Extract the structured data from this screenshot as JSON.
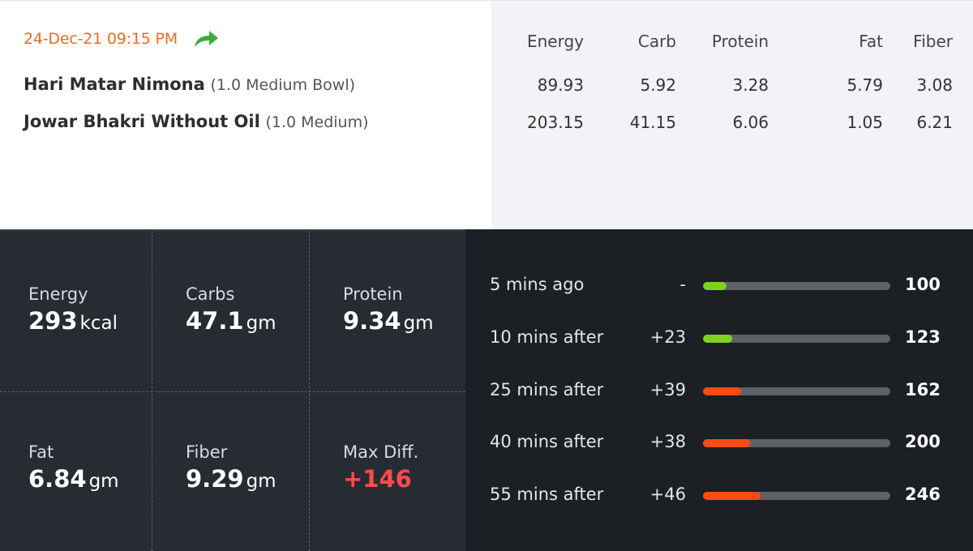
{
  "meal": {
    "timestamp": "24-Dec-21 09:15 PM",
    "share_icon": "share-arrow-icon",
    "items": [
      {
        "name": "Hari Matar Nimona",
        "qty": "(1.0 Medium Bowl)",
        "energy": "89.93",
        "carb": "5.92",
        "protein": "3.28",
        "fat": "5.79",
        "fiber": "3.08"
      },
      {
        "name": "Jowar Bhakri Without Oil",
        "qty": "(1.0 Medium)",
        "energy": "203.15",
        "carb": "41.15",
        "protein": "6.06",
        "fat": "1.05",
        "fiber": "6.21"
      }
    ],
    "headers": {
      "energy": "Energy",
      "carb": "Carb",
      "protein": "Protein",
      "fat": "Fat",
      "fiber": "Fiber"
    }
  },
  "summary": {
    "energy": {
      "label": "Energy",
      "value": "293",
      "unit": "kcal"
    },
    "carbs": {
      "label": "Carbs",
      "value": "47.1",
      "unit": "gm"
    },
    "protein": {
      "label": "Protein",
      "value": "9.34",
      "unit": "gm"
    },
    "fat": {
      "label": "Fat",
      "value": "6.84",
      "unit": "gm"
    },
    "fiber": {
      "label": "Fiber",
      "value": "9.29",
      "unit": "gm"
    },
    "max_diff": {
      "label": "Max Diff.",
      "value": "+146",
      "color": "#ff4a4a"
    }
  },
  "timeline": {
    "scale_max": 800,
    "rows": [
      {
        "label": "5 mins ago",
        "diff": "-",
        "value": "100",
        "level": 100,
        "color": "#7ed321"
      },
      {
        "label": "10 mins after",
        "diff": "+23",
        "value": "123",
        "level": 123,
        "color": "#7ed321"
      },
      {
        "label": "25 mins after",
        "diff": "+39",
        "value": "162",
        "level": 162,
        "color": "#ff4a14"
      },
      {
        "label": "40 mins after",
        "diff": "+38",
        "value": "200",
        "level": 200,
        "color": "#ff4a14"
      },
      {
        "label": "55 mins after",
        "diff": "+46",
        "value": "246",
        "level": 246,
        "color": "#ff4a14"
      }
    ]
  }
}
